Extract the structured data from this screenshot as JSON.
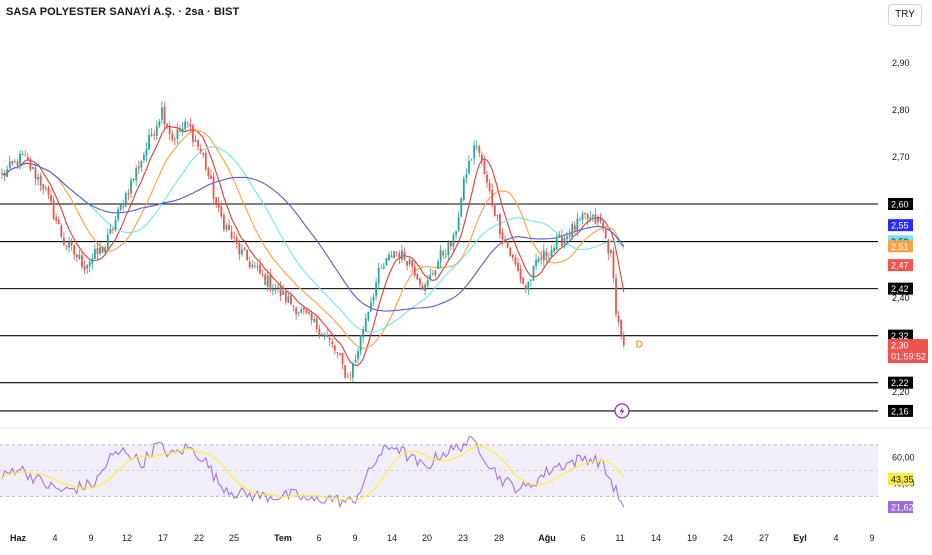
{
  "chart_data": [
    {
      "type": "candlestick",
      "title": "SASA POLYESTER SANAYİ A.Ş. · 2sa · BIST",
      "currency": "TRY",
      "ylim": [
        2.13,
        2.97
      ],
      "y_ticks": [
        "2,90",
        "2,80",
        "2,70",
        "2,40",
        "2,20"
      ],
      "x_tick_labels": [
        "Haz",
        "4",
        "9",
        "12",
        "17",
        "22",
        "25",
        "Tem",
        "6",
        "9",
        "14",
        "20",
        "23",
        "28",
        "Ağu",
        "6",
        "11",
        "14",
        "19",
        "24",
        "27",
        "Eyl",
        "4",
        "9"
      ],
      "close_anchors": [
        [
          0,
          2.66
        ],
        [
          8,
          2.7
        ],
        [
          16,
          2.64
        ],
        [
          24,
          2.52
        ],
        [
          32,
          2.47
        ],
        [
          40,
          2.51
        ],
        [
          48,
          2.62
        ],
        [
          56,
          2.72
        ],
        [
          62,
          2.8
        ],
        [
          66,
          2.74
        ],
        [
          72,
          2.77
        ],
        [
          78,
          2.7
        ],
        [
          84,
          2.58
        ],
        [
          92,
          2.5
        ],
        [
          100,
          2.45
        ],
        [
          108,
          2.41
        ],
        [
          116,
          2.37
        ],
        [
          124,
          2.33
        ],
        [
          130,
          2.28
        ],
        [
          134,
          2.23
        ],
        [
          137,
          2.27
        ],
        [
          141,
          2.36
        ],
        [
          146,
          2.45
        ],
        [
          152,
          2.5
        ],
        [
          158,
          2.48
        ],
        [
          164,
          2.42
        ],
        [
          170,
          2.49
        ],
        [
          175,
          2.52
        ],
        [
          180,
          2.67
        ],
        [
          184,
          2.73
        ],
        [
          188,
          2.64
        ],
        [
          193,
          2.55
        ],
        [
          198,
          2.48
        ],
        [
          203,
          2.42
        ],
        [
          208,
          2.48
        ],
        [
          214,
          2.51
        ],
        [
          220,
          2.54
        ],
        [
          226,
          2.57
        ],
        [
          232,
          2.56
        ],
        [
          236,
          2.49
        ],
        [
          238,
          2.38
        ],
        [
          240,
          2.32
        ],
        [
          241,
          2.3
        ]
      ],
      "moving_averages": [
        {
          "color": "#e53935",
          "period": 8
        },
        {
          "color": "#ff9f43",
          "period": 20
        },
        {
          "color": "#6ee7f0",
          "period": 34
        },
        {
          "color": "#5b5bd6",
          "period": 55
        }
      ],
      "horizontal_levels": [
        {
          "value": 2.6,
          "label": "2,60",
          "line": true
        },
        {
          "value": 2.52,
          "label": "2,52",
          "line": true
        },
        {
          "value": 2.42,
          "label": "2,42",
          "line": true
        },
        {
          "value": 2.32,
          "label": "2,32",
          "line": true
        },
        {
          "value": 2.22,
          "label": "2,22",
          "line": true
        },
        {
          "value": 2.16,
          "label": "2,16",
          "line": true
        }
      ],
      "price_tags": [
        {
          "value": 2.555,
          "label": "2,55",
          "color": "#2a2aff"
        },
        {
          "value": 2.52,
          "label": "2,52",
          "color": "#6ee7f0"
        },
        {
          "value": 2.51,
          "label": "2,51",
          "color": "#ff9f43"
        },
        {
          "value": 2.47,
          "label": "2,47",
          "color": "#ef5350"
        }
      ],
      "last_price": {
        "label": "2,30",
        "countdown": "01:59:52",
        "color": "#ef5350"
      },
      "dividend_marker": "D",
      "colors": {
        "up": "#26a69a",
        "down": "#ef5350"
      }
    },
    {
      "type": "line",
      "indicator": "RSI",
      "ylim": [
        10,
        80
      ],
      "band": [
        30,
        70
      ],
      "y_ticks": [
        "60,00",
        "40,00"
      ],
      "rsi_anchors": [
        [
          0,
          44
        ],
        [
          6,
          53
        ],
        [
          12,
          45
        ],
        [
          18,
          38
        ],
        [
          24,
          34
        ],
        [
          30,
          37
        ],
        [
          36,
          40
        ],
        [
          42,
          60
        ],
        [
          48,
          66
        ],
        [
          54,
          55
        ],
        [
          60,
          70
        ],
        [
          66,
          62
        ],
        [
          72,
          68
        ],
        [
          78,
          60
        ],
        [
          84,
          40
        ],
        [
          90,
          33
        ],
        [
          96,
          31
        ],
        [
          102,
          30
        ],
        [
          108,
          30
        ],
        [
          114,
          31
        ],
        [
          120,
          26
        ],
        [
          126,
          29
        ],
        [
          132,
          26
        ],
        [
          136,
          25
        ],
        [
          140,
          40
        ],
        [
          146,
          62
        ],
        [
          152,
          70
        ],
        [
          158,
          60
        ],
        [
          164,
          52
        ],
        [
          170,
          63
        ],
        [
          175,
          66
        ],
        [
          180,
          72
        ],
        [
          184,
          71
        ],
        [
          188,
          58
        ],
        [
          193,
          44
        ],
        [
          198,
          38
        ],
        [
          203,
          36
        ],
        [
          208,
          44
        ],
        [
          214,
          53
        ],
        [
          220,
          56
        ],
        [
          226,
          60
        ],
        [
          232,
          57
        ],
        [
          236,
          42
        ],
        [
          239,
          30
        ],
        [
          241,
          21.62
        ]
      ],
      "ma_tag": {
        "label": "43,35",
        "color": "#ffeb3b"
      },
      "rsi_tag": {
        "label": "21,62",
        "color": "#9c6ade"
      },
      "line_color": "#9c6ade",
      "ma_color": "#ffeb3b"
    }
  ]
}
